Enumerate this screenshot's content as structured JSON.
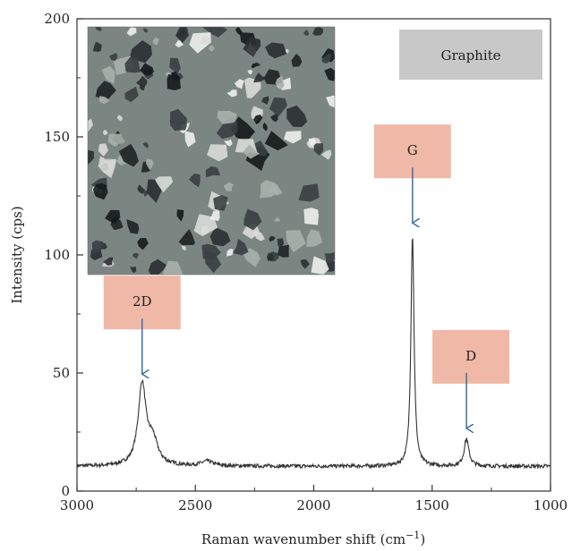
{
  "chart_data": {
    "type": "line",
    "title": "",
    "xlabel": "Raman wavenumber shift (cm",
    "xlabel_sup": "−1",
    "xlabel_close": ")",
    "ylabel": "Intensity (cps)",
    "xlim": [
      3000,
      1000
    ],
    "ylim": [
      0,
      200
    ],
    "x_reversed": true,
    "grid": false,
    "x_ticks": [
      3000,
      2500,
      2000,
      1500,
      1000
    ],
    "x_tick_labels": [
      "3000",
      "2500",
      "2000",
      "1500",
      "1000"
    ],
    "y_ticks": [
      0,
      50,
      100,
      150,
      200
    ],
    "y_tick_labels": [
      "0",
      "50",
      "100",
      "150",
      "200"
    ],
    "series": [
      {
        "color": "#333333",
        "baseline": 10.5,
        "noise_amplitude": 0.8,
        "peaks": [
          {
            "center": 2725,
            "height": 34,
            "width": 20
          },
          {
            "center": 2680,
            "height": 10,
            "width": 25
          },
          {
            "center": 2450,
            "height": 2,
            "width": 30
          },
          {
            "center": 1583,
            "height": 98,
            "width": 8
          },
          {
            "center": 1355,
            "height": 11.5,
            "width": 12
          }
        ]
      }
    ],
    "legend": {
      "label": "Graphite",
      "position": "top-right",
      "color": "#c8c8c8"
    },
    "annotations": [
      {
        "label": "2D",
        "x": 2725,
        "y": 45,
        "box_color": "#f0b8a6",
        "arrow_color": "#3d6fa8"
      },
      {
        "label": "G",
        "x": 1583,
        "y": 109,
        "box_color": "#f0b8a6",
        "arrow_color": "#3d6fa8"
      },
      {
        "label": "D",
        "x": 1355,
        "y": 22,
        "box_color": "#f0b8a6",
        "arrow_color": "#3d6fa8"
      }
    ],
    "inset": {
      "kind": "optical micrograph of graphite flakes",
      "position": "top-left"
    }
  }
}
